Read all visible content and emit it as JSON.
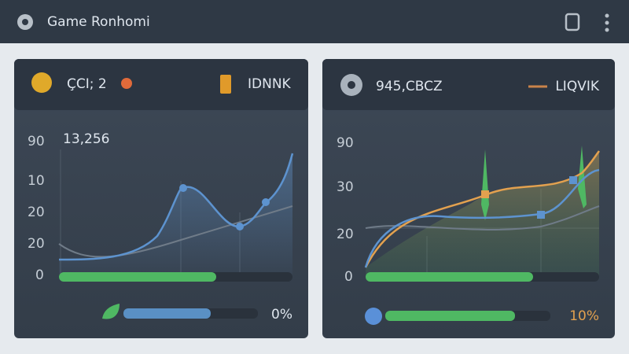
{
  "header": {
    "title": "Game Ronhomi"
  },
  "panels": [
    {
      "title": "ÇCI; 2",
      "badge": "IDNNK",
      "value": "13,256",
      "axis_labels": [
        "90",
        "10",
        "20",
        "20",
        "0"
      ],
      "progress_label": "0%"
    },
    {
      "title": "945,CBCZ",
      "badge": "LIQVIK",
      "axis_labels": [
        "90",
        "30",
        "20",
        "0"
      ],
      "progress_label": "10%"
    }
  ]
}
